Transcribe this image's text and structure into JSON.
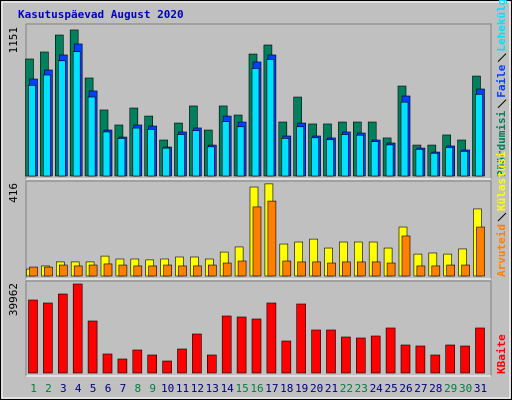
{
  "chart_data": [
    {
      "type": "bar",
      "title": "Kasutuspäevad August 2020",
      "ylim": [
        0,
        1151
      ],
      "yticks": [
        1151
      ],
      "series": [
        {
          "name": "Pöördumisi",
          "color": "#00805c",
          "values": [
            904,
            958,
            1089,
            1128,
            757,
            510,
            394,
            525,
            463,
            278,
            409,
            541,
            355,
            541,
            471,
            942,
            1012,
            417,
            610,
            402,
            402,
            417,
            417,
            417,
            294,
            695,
            239,
            239,
            317,
            278,
            772
          ]
        },
        {
          "name": "Faile",
          "color": "#0040ff",
          "values": [
            749,
            819,
            935,
            1020,
            657,
            355,
            301,
            394,
            386,
            224,
            340,
            371,
            239,
            463,
            417,
            881,
            935,
            309,
            409,
            309,
            294,
            340,
            332,
            278,
            255,
            618,
            216,
            185,
            232,
            201,
            672
          ]
        },
        {
          "name": "Lehekülgi",
          "color": "#00e0ff",
          "values": [
            700,
            780,
            890,
            960,
            610,
            340,
            290,
            370,
            360,
            215,
            320,
            350,
            225,
            420,
            380,
            830,
            900,
            290,
            380,
            295,
            280,
            320,
            315,
            265,
            240,
            570,
            205,
            175,
            220,
            190,
            630
          ]
        }
      ]
    },
    {
      "type": "bar",
      "ylim": [
        0,
        416
      ],
      "yticks": [
        416
      ],
      "series": [
        {
          "name": "Arvuteid",
          "color": "#ff8000",
          "values": [
            40,
            40,
            49,
            45,
            49,
            54,
            49,
            45,
            45,
            49,
            45,
            45,
            49,
            58,
            67,
            309,
            335,
            67,
            63,
            63,
            58,
            63,
            63,
            63,
            58,
            179,
            45,
            45,
            49,
            49,
            219
          ]
        },
        {
          "name": "Külastusi",
          "color": "#ffff00",
          "values": [
            31,
            45,
            63,
            63,
            63,
            89,
            76,
            76,
            72,
            76,
            85,
            85,
            76,
            107,
            130,
            398,
            412,
            143,
            152,
            165,
            125,
            152,
            152,
            152,
            125,
            219,
            98,
            103,
            98,
            121,
            300
          ]
        }
      ]
    },
    {
      "type": "bar",
      "ylim": [
        0,
        39962
      ],
      "yticks": [
        39962
      ],
      "categories": [
        "1",
        "2",
        "3",
        "4",
        "5",
        "6",
        "7",
        "8",
        "9",
        "10",
        "11",
        "12",
        "13",
        "14",
        "15",
        "16",
        "17",
        "18",
        "19",
        "20",
        "21",
        "22",
        "23",
        "24",
        "25",
        "26",
        "27",
        "28",
        "29",
        "30",
        "31"
      ],
      "category_colors": [
        "#008040",
        "#008040",
        "#000080",
        "#000080",
        "#000080",
        "#000080",
        "#000080",
        "#008040",
        "#008040",
        "#000080",
        "#000080",
        "#000080",
        "#000080",
        "#000080",
        "#008040",
        "#008040",
        "#000080",
        "#000080",
        "#000080",
        "#000080",
        "#000080",
        "#008040",
        "#008040",
        "#000080",
        "#000080",
        "#000080",
        "#000080",
        "#000080",
        "#008040",
        "#008040",
        "#000080"
      ],
      "series": [
        {
          "name": "KBaite",
          "color": "#ff0000",
          "values": [
            32414,
            31082,
            35078,
            39518,
            23091,
            8436,
            6216,
            10212,
            7992,
            5328,
            10656,
            17316,
            7992,
            25311,
            24867,
            23979,
            31082,
            14208,
            30638,
            19094,
            19094,
            15985,
            15541,
            16429,
            19982,
            12432,
            11988,
            7992,
            12432,
            11988,
            19982
          ]
        }
      ]
    }
  ]
}
